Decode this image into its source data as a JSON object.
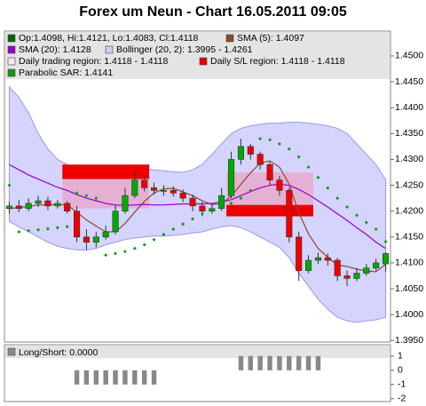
{
  "chart_data": [
    {
      "type": "candlestick",
      "title": "Forex um Neun - Chart 16.05.2011 09:05",
      "ohlc_label": "Op:1.4098, Hi:1.4121, Lo:1.4083, Cl:1.4118",
      "ohlc_color": "#006600",
      "up_color": "#00aa00",
      "down_color": "#ee0000",
      "open": [
        1.4205,
        1.421,
        1.4205,
        1.4215,
        1.422,
        1.421,
        1.4215,
        1.42,
        1.415,
        1.414,
        1.415,
        1.416,
        1.42,
        1.423,
        1.426,
        1.4245,
        1.424,
        1.424,
        1.4235,
        1.4225,
        1.421,
        1.42,
        1.4205,
        1.423,
        1.43,
        1.4325,
        1.431,
        1.429,
        1.426,
        1.424,
        1.415,
        1.4085,
        1.4105,
        1.411,
        1.4105,
        1.4075,
        1.407,
        1.408,
        1.409,
        1.4098
      ],
      "high": [
        1.4218,
        1.4222,
        1.4225,
        1.423,
        1.4228,
        1.4222,
        1.422,
        1.421,
        1.4165,
        1.416,
        1.4172,
        1.4212,
        1.4245,
        1.4275,
        1.4268,
        1.4255,
        1.425,
        1.4248,
        1.4242,
        1.4232,
        1.4218,
        1.4215,
        1.4245,
        1.4315,
        1.434,
        1.433,
        1.4315,
        1.4295,
        1.4268,
        1.4245,
        1.416,
        1.4115,
        1.412,
        1.4118,
        1.411,
        1.4085,
        1.409,
        1.4098,
        1.4108,
        1.4121
      ],
      "low": [
        1.4195,
        1.4198,
        1.42,
        1.4208,
        1.4202,
        1.4205,
        1.4195,
        1.414,
        1.4125,
        1.413,
        1.4145,
        1.4155,
        1.4195,
        1.4225,
        1.4238,
        1.4232,
        1.423,
        1.4228,
        1.4218,
        1.42,
        1.419,
        1.4195,
        1.42,
        1.4225,
        1.429,
        1.43,
        1.428,
        1.425,
        1.423,
        1.414,
        1.4065,
        1.408,
        1.4098,
        1.4095,
        1.4065,
        1.4055,
        1.4065,
        1.4075,
        1.4085,
        1.4083
      ],
      "close": [
        1.421,
        1.4205,
        1.4215,
        1.422,
        1.421,
        1.4215,
        1.42,
        1.415,
        1.414,
        1.415,
        1.416,
        1.42,
        1.423,
        1.426,
        1.4245,
        1.424,
        1.424,
        1.4235,
        1.4225,
        1.421,
        1.42,
        1.4205,
        1.423,
        1.43,
        1.4325,
        1.431,
        1.429,
        1.426,
        1.424,
        1.415,
        1.4085,
        1.4105,
        1.411,
        1.4105,
        1.4075,
        1.407,
        1.408,
        1.409,
        1.41,
        1.4118
      ],
      "band": {
        "label": "Bollinger (20, 2): 1.3995 - 1.4261",
        "color": "#ccccff",
        "line_color": "#9999ee",
        "upper": [
          1.444,
          1.442,
          1.439,
          1.435,
          1.432,
          1.43,
          1.429,
          1.4285,
          1.428,
          1.4278,
          1.4275,
          1.4272,
          1.4275,
          1.428,
          1.4282,
          1.428,
          1.4278,
          1.4276,
          1.4275,
          1.428,
          1.429,
          1.431,
          1.433,
          1.435,
          1.436,
          1.4365,
          1.4368,
          1.437,
          1.437,
          1.4372,
          1.4372,
          1.437,
          1.4368,
          1.4365,
          1.436,
          1.435,
          1.433,
          1.431,
          1.429,
          1.4261
        ],
        "lower": [
          1.418,
          1.417,
          1.416,
          1.415,
          1.414,
          1.4132,
          1.4128,
          1.4125,
          1.4125,
          1.4128,
          1.4135,
          1.414,
          1.4145,
          1.4148,
          1.415,
          1.4152,
          1.4152,
          1.4153,
          1.4155,
          1.4158,
          1.416,
          1.4165,
          1.417,
          1.4172,
          1.4168,
          1.416,
          1.415,
          1.414,
          1.413,
          1.411,
          1.408,
          1.4055,
          1.403,
          1.401,
          1.3995,
          1.3988,
          1.3985,
          1.3988,
          1.399,
          1.3995
        ]
      },
      "lines": [
        {
          "label": "SMA (5): 1.4097",
          "color": "#8b4a2b",
          "values": [
            1.4205,
            1.4207,
            1.4209,
            1.4212,
            1.4212,
            1.4213,
            1.4212,
            1.4198,
            1.4183,
            1.4171,
            1.416,
            1.416,
            1.4176,
            1.4198,
            1.4219,
            1.4235,
            1.4243,
            1.4244,
            1.4237,
            1.423,
            1.422,
            1.4213,
            1.4214,
            1.4229,
            1.4252,
            1.4274,
            1.4293,
            1.4297,
            1.4285,
            1.4252,
            1.4197,
            1.4156,
            1.4128,
            1.4111,
            1.4096,
            1.4093,
            1.4088,
            1.4084,
            1.4083,
            1.4097
          ]
        },
        {
          "label": "SMA (20): 1.4128",
          "color": "#9900cc",
          "values": [
            1.429,
            1.428,
            1.427,
            1.4262,
            1.4254,
            1.4246,
            1.424,
            1.4232,
            1.4225,
            1.422,
            1.4215,
            1.4212,
            1.4211,
            1.4212,
            1.4213,
            1.4212,
            1.4212,
            1.4213,
            1.4214,
            1.4214,
            1.4214,
            1.4215,
            1.4218,
            1.4222,
            1.423,
            1.4238,
            1.4245,
            1.425,
            1.4252,
            1.425,
            1.4242,
            1.4232,
            1.422,
            1.4208,
            1.4195,
            1.4182,
            1.4168,
            1.4155,
            1.414,
            1.4128
          ]
        }
      ],
      "sar": {
        "label": "Parabolic SAR: 1.4141",
        "color": "#119911",
        "values": [
          1.425,
          1.416,
          1.4162,
          1.4164,
          1.4166,
          1.4168,
          1.417,
          1.4235,
          1.423,
          1.4225,
          1.4115,
          1.4118,
          1.4122,
          1.4128,
          1.4135,
          1.4145,
          1.4155,
          1.4165,
          1.4175,
          1.4185,
          1.4195,
          1.4205,
          1.421,
          1.4215,
          1.4225,
          1.424,
          1.434,
          1.4338,
          1.433,
          1.432,
          1.4305,
          1.4285,
          1.4265,
          1.4245,
          1.4225,
          1.4208,
          1.4192,
          1.4178,
          1.4165,
          1.4141
        ]
      },
      "regions": {
        "trading_label": "Daily trading region: 1.4118 - 1.4118",
        "trading_color": "#f4ecec",
        "sl_label": "Daily S/L region: 1.4118 - 1.4118",
        "sl_color": "#ee0000",
        "sl_fill": "#e8a8c8",
        "items": [
          {
            "start": 6,
            "end": 14,
            "high": 1.429,
            "low": 1.4262,
            "sl_high": 1.4262,
            "sl_low": 1.4205
          },
          {
            "start": 23,
            "end": 31,
            "high": 1.4212,
            "low": 1.419,
            "sl_high": 1.4275,
            "sl_low": 1.4212
          }
        ]
      },
      "ylim": [
        1.3947,
        1.4548
      ],
      "yticks": [
        {
          "value": 1.45,
          "label": "1.4500"
        },
        {
          "value": 1.445,
          "label": "1.4450"
        },
        {
          "value": 1.44,
          "label": "1.4400"
        },
        {
          "value": 1.435,
          "label": "1.4350"
        },
        {
          "value": 1.43,
          "label": "1.4300"
        },
        {
          "value": 1.425,
          "label": "1.4250"
        },
        {
          "value": 1.42,
          "label": "1.4200"
        },
        {
          "value": 1.415,
          "label": "1.4150"
        },
        {
          "value": 1.41,
          "label": "1.4100"
        },
        {
          "value": 1.405,
          "label": "1.4050"
        },
        {
          "value": 1.4,
          "label": "1.4000"
        },
        {
          "value": 1.395,
          "label": "1.3950"
        }
      ]
    },
    {
      "type": "bar",
      "label": "Long/Short: 0.0000",
      "color": "#888888",
      "values": [
        0,
        0,
        0,
        0,
        0,
        0,
        0,
        -1,
        -1,
        -1,
        -1,
        -1,
        -1,
        -1,
        -1,
        -1,
        0,
        0,
        0,
        0,
        0,
        0,
        0,
        0,
        1,
        1,
        1,
        1,
        1,
        1,
        1,
        1,
        1,
        0,
        0,
        0,
        0,
        0,
        0,
        0
      ],
      "ylim": [
        -2.2,
        1.8
      ],
      "yticks": [
        1,
        0,
        -1,
        -2
      ]
    }
  ]
}
